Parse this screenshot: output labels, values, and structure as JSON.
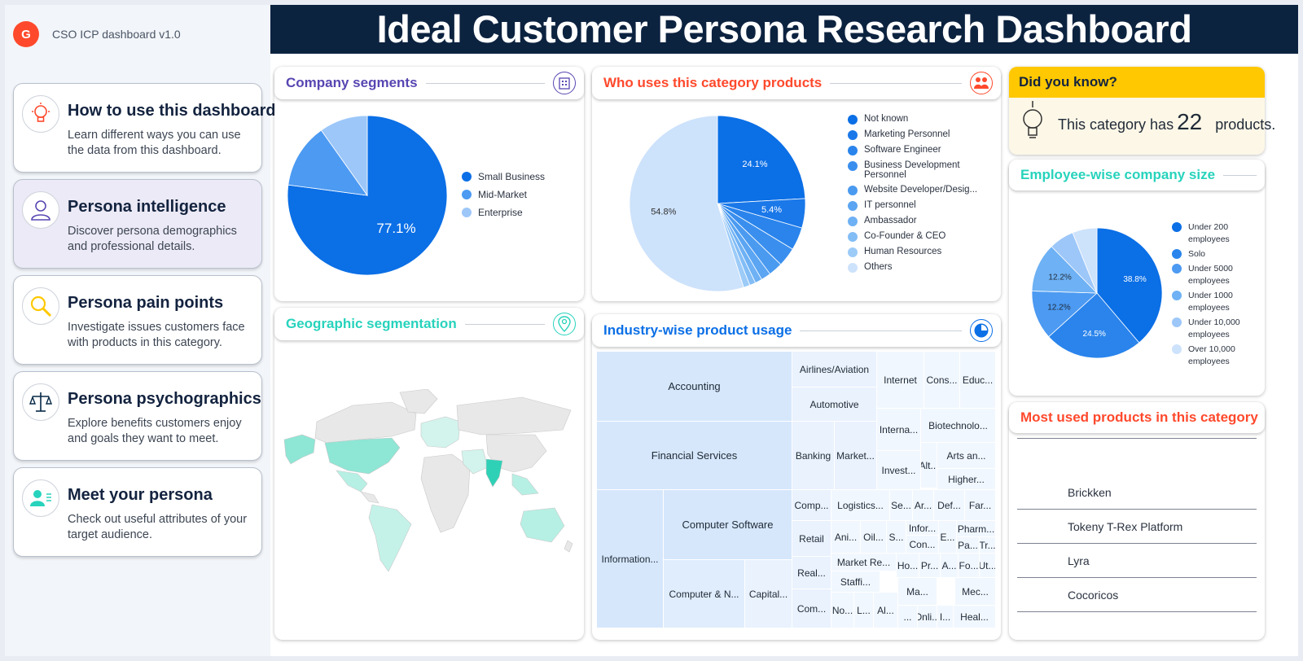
{
  "brand": {
    "logo": "G",
    "name": "CSO ICP dashboard v1.0"
  },
  "header": {
    "title": "Ideal Customer Persona Research Dashboard"
  },
  "nav": [
    {
      "title": "How to use this dashboard",
      "desc": "Learn different ways you can use the data from this dashboard.",
      "icon": "bulb-icon",
      "color": "#ff492c"
    },
    {
      "title": "Persona intelligence",
      "desc": "Discover persona demographics and professional details.",
      "icon": "user-icon",
      "color": "#5746b2"
    },
    {
      "title": "Persona pain points",
      "desc": "Investigate issues customers face with products in this category.",
      "icon": "magnifier-icon",
      "color": "#ffc800"
    },
    {
      "title": "Persona psychographics",
      "desc": "Explore benefits customers enjoy and goals they want to meet.",
      "icon": "scale-icon",
      "color": "#062846"
    },
    {
      "title": "Meet your persona",
      "desc": "Check out useful attributes of your target audience.",
      "icon": "persona-icon",
      "color": "#27d3bc"
    }
  ],
  "segments": {
    "title": "Company segments",
    "title_color": "#5746b2",
    "chart_data": {
      "type": "pie",
      "labels": [
        "Small Business",
        "Mid-Market",
        "Enterprise"
      ],
      "values": [
        77.1,
        13.1,
        9.8
      ],
      "colors": [
        "#0b6fe6",
        "#4c9af2",
        "#9dc7f9"
      ],
      "data_labels": [
        "77.1%",
        "",
        ""
      ]
    }
  },
  "who": {
    "title": "Who uses this category products",
    "title_color": "#ff492c",
    "chart_data": {
      "type": "pie",
      "labels": [
        "Not known",
        "Marketing Personnel",
        "Software Engineer",
        "Business Development Personnel",
        "Website Developer/Desig...",
        "IT personnel",
        "Ambassador",
        "Co-Founder & CEO",
        "Human Resources",
        "Others"
      ],
      "values": [
        24.1,
        5.4,
        4.2,
        3.5,
        2.6,
        1.8,
        1.3,
        1.1,
        1.2,
        54.8
      ],
      "colors": [
        "#0b6fe6",
        "#1a78e9",
        "#2a84ec",
        "#3a8fee",
        "#4a9af0",
        "#5ba5f2",
        "#6eb1f4",
        "#83bdf6",
        "#9ccbf8",
        "#cde2fb"
      ],
      "data_labels": [
        "24.1%",
        "5.4%",
        "",
        "",
        "",
        "",
        "",
        "",
        "",
        "54.8%"
      ]
    }
  },
  "geo": {
    "title": "Geographic segmentation",
    "title_color": "#27d3bc"
  },
  "industry": {
    "title": "Industry-wise product usage",
    "title_color": "#0b6fe6",
    "tiles": [
      "Accounting",
      "Airlines/Aviation",
      "Internet",
      "Cons...",
      "Educ...",
      "Automotive",
      "Financial Services",
      "Banking",
      "Market...",
      "Interna...",
      "Biotechnolo...",
      "Alt...",
      "Arts an...",
      "Invest...",
      "Higher...",
      "Information...",
      "Computer Software",
      "Comp...",
      "Logistics...",
      "Se...",
      "Ar...",
      "Def...",
      "Far...",
      "Retail",
      "Ani...",
      "Oil...",
      "S...",
      "Infor...",
      "E...",
      "Pharm...",
      "Con...",
      "Pa...",
      "Tr...",
      "Computer & N...",
      "Capital...",
      "Real...",
      "Market Re...",
      "Ho...",
      "Pr...",
      "A...",
      "Fo...",
      "Ut...",
      "Staffi...",
      "No...",
      "Ma...",
      "Mec...",
      "Com...",
      "L...",
      "Al...",
      "...",
      "Onli...",
      "I...",
      "Heal..."
    ]
  },
  "didyouknow": {
    "title": "Did you know?",
    "prefix": "This category has",
    "count": "22",
    "suffix": "products."
  },
  "size": {
    "title": "Employee-wise company size",
    "title_color": "#27d3bc",
    "chart_data": {
      "type": "pie",
      "labels": [
        "Under 200 employees",
        "Solo",
        "Under 5000 employees",
        "Under 1000 employees",
        "Under 10,000 employees",
        "Over 10,000 employees"
      ],
      "values": [
        38.8,
        24.5,
        12.2,
        12.2,
        6.2,
        6.1
      ],
      "colors": [
        "#0b6fe6",
        "#2a84ec",
        "#4c9af2",
        "#6eb1f4",
        "#9dc7f9",
        "#cde2fb"
      ],
      "data_labels": [
        "38.8%",
        "24.5%",
        "12.2%",
        "12.2%",
        "",
        ""
      ]
    }
  },
  "products": {
    "title": "Most used products in this category",
    "title_color": "#ff492c",
    "items": [
      "Brickken",
      "Tokeny T-Rex Platform",
      "Lyra",
      "Cocoricos"
    ]
  }
}
